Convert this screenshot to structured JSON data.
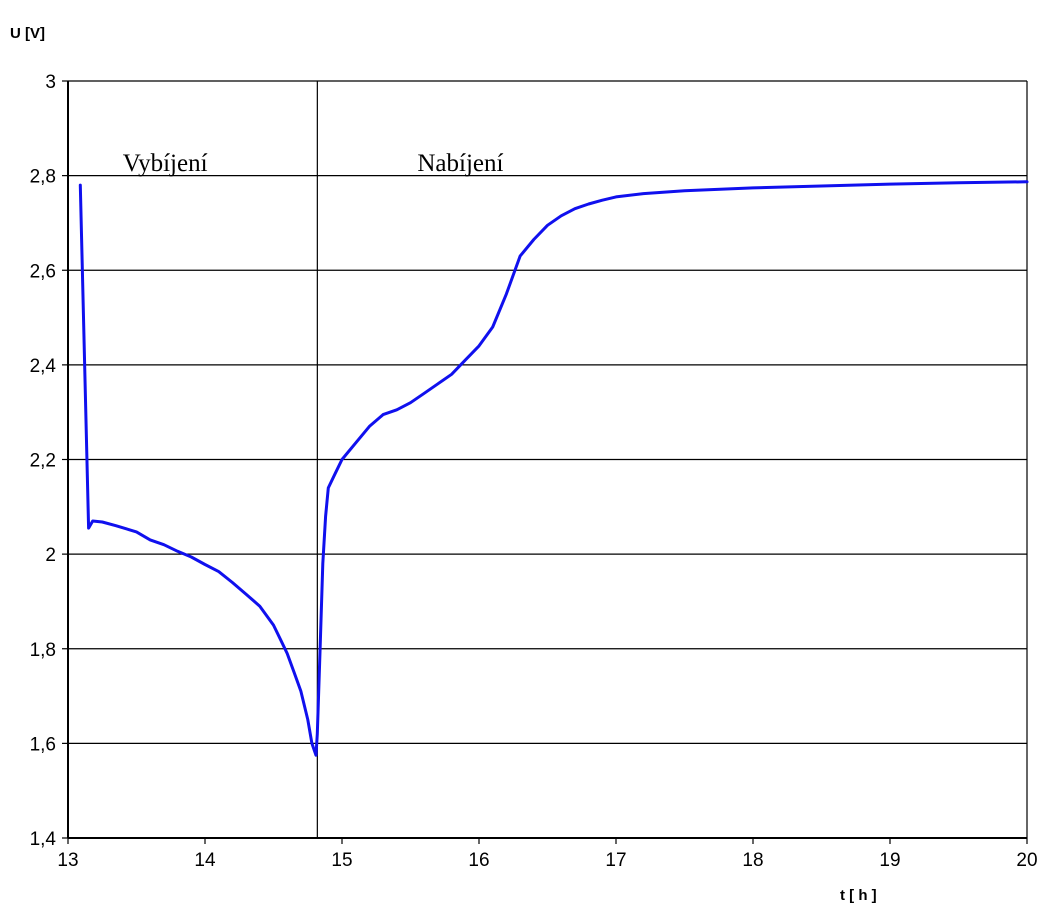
{
  "chart_data": {
    "type": "line",
    "title": "",
    "xlabel": "t [ h ]",
    "ylabel": "U [V]",
    "xlim": [
      13,
      20
    ],
    "ylim": [
      1.4,
      3
    ],
    "xticks": [
      13,
      14,
      15,
      16,
      17,
      18,
      19,
      20
    ],
    "xtick_labels": [
      "13",
      "14",
      "15",
      "16",
      "17",
      "18",
      "19",
      "20"
    ],
    "yticks": [
      1.4,
      1.6,
      1.8,
      2,
      2.2,
      2.4,
      2.6,
      2.8,
      3
    ],
    "ytick_labels": [
      "1,4",
      "1,6",
      "1,8",
      "2",
      "2,2",
      "2,4",
      "2,6",
      "2,8",
      "3"
    ],
    "grid": "horizontal",
    "line_color": "#1010ee",
    "divider_x": 14.82,
    "annotations": [
      {
        "text": "Vybíjení",
        "x": 13.4,
        "y": 2.81
      },
      {
        "text": "Nabíjení",
        "x": 15.55,
        "y": 2.81
      }
    ],
    "series": [
      {
        "x": [
          13.09,
          13.15,
          13.18,
          13.25,
          13.35,
          13.5,
          13.6,
          13.7,
          13.8,
          13.9,
          14.0,
          14.1,
          14.2,
          14.3,
          14.4,
          14.5,
          14.55,
          14.6,
          14.65,
          14.7,
          14.75,
          14.78,
          14.81,
          14.82,
          14.84,
          14.86,
          14.88,
          14.9,
          14.95,
          15.0,
          15.1,
          15.2,
          15.3,
          15.4,
          15.5,
          15.6,
          15.7,
          15.8,
          15.9,
          16.0,
          16.1,
          16.2,
          16.3,
          16.4,
          16.5,
          16.6,
          16.7,
          16.8,
          16.9,
          17.0,
          17.2,
          17.5,
          18.0,
          18.5,
          19.0,
          19.5,
          20.0
        ],
        "y": [
          2.78,
          2.055,
          2.07,
          2.068,
          2.06,
          2.047,
          2.03,
          2.02,
          2.006,
          1.994,
          1.978,
          1.963,
          1.94,
          1.915,
          1.89,
          1.85,
          1.82,
          1.79,
          1.75,
          1.71,
          1.65,
          1.6,
          1.575,
          1.62,
          1.8,
          1.98,
          2.08,
          2.14,
          2.17,
          2.2,
          2.235,
          2.27,
          2.295,
          2.305,
          2.32,
          2.34,
          2.36,
          2.38,
          2.41,
          2.44,
          2.48,
          2.55,
          2.63,
          2.665,
          2.695,
          2.715,
          2.73,
          2.74,
          2.748,
          2.755,
          2.762,
          2.768,
          2.774,
          2.778,
          2.782,
          2.785,
          2.787
        ]
      }
    ]
  }
}
